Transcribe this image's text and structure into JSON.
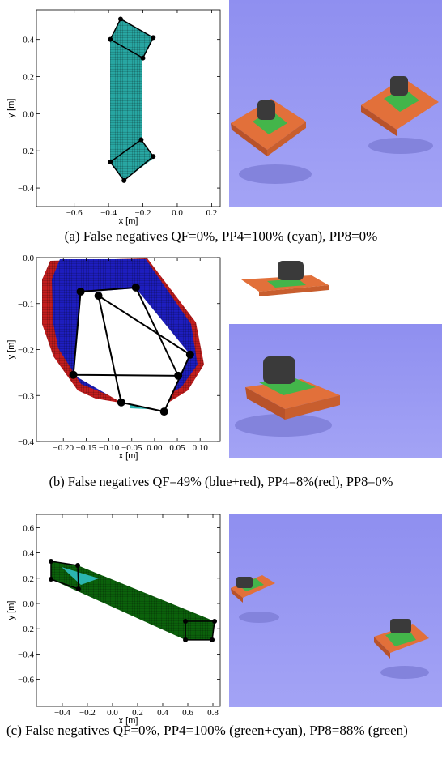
{
  "figures": [
    {
      "caption": "(a) False negatives QF=0%, PP4=100% (cyan), PP8=0%",
      "plot": {
        "xlabel": "x [m]",
        "ylabel": "y [m]",
        "xlim": [
          -0.82,
          0.25
        ],
        "ylim": [
          -0.5,
          0.56
        ],
        "xticks": [
          {
            "value": -0.6,
            "label": "−0.6"
          },
          {
            "value": -0.4,
            "label": "−0.4"
          },
          {
            "value": -0.2,
            "label": "−0.2"
          },
          {
            "value": 0.0,
            "label": "0.0"
          },
          {
            "value": 0.2,
            "label": "0.2"
          }
        ],
        "yticks": [
          {
            "value": -0.4,
            "label": "−0.4"
          },
          {
            "value": -0.2,
            "label": "−0.2"
          },
          {
            "value": 0.0,
            "label": "0.0"
          },
          {
            "value": 0.2,
            "label": "0.2"
          },
          {
            "value": 0.4,
            "label": "0.4"
          }
        ],
        "polygons": [
          {
            "x": [
              -0.33,
              -0.14,
              -0.2,
              -0.39
            ],
            "y": [
              0.51,
              0.41,
              0.3,
              0.4
            ]
          },
          {
            "x": [
              -0.21,
              -0.14,
              -0.31,
              -0.39
            ],
            "y": [
              -0.14,
              -0.23,
              -0.36,
              -0.26
            ]
          }
        ]
      }
    },
    {
      "caption": "(b) False negatives QF=49% (blue+red), PP4=8%(red), PP8=0%",
      "plot": {
        "xlabel": "x [m]",
        "ylabel": "y [m]",
        "xlim": [
          -0.259,
          0.144
        ],
        "ylim": [
          -0.4,
          0.0
        ],
        "xticks": [
          {
            "value": -0.2,
            "label": "−0.20"
          },
          {
            "value": -0.15,
            "label": "−0.15"
          },
          {
            "value": -0.1,
            "label": "−0.10"
          },
          {
            "value": -0.05,
            "label": "−0.05"
          },
          {
            "value": 0.0,
            "label": "0.00"
          },
          {
            "value": 0.05,
            "label": "0.05"
          },
          {
            "value": 0.1,
            "label": "0.10"
          }
        ],
        "yticks": [
          {
            "value": -0.4,
            "label": "−0.4"
          },
          {
            "value": -0.3,
            "label": "−0.3"
          },
          {
            "value": -0.2,
            "label": "−0.2"
          },
          {
            "value": -0.1,
            "label": "−0.1"
          },
          {
            "value": 0.0,
            "label": "0.0"
          }
        ],
        "polygons": [
          {
            "x": [
              -0.162,
              -0.041,
              0.052,
              -0.178
            ],
            "y": [
              -0.074,
              -0.065,
              -0.257,
              -0.255
            ]
          },
          {
            "x": [
              -0.123,
              0.078,
              0.021,
              -0.073
            ],
            "y": [
              -0.083,
              -0.211,
              -0.335,
              -0.315
            ]
          }
        ]
      }
    },
    {
      "caption": "(c) False negatives QF=0%, PP4=100% (green+cyan), PP8=88% (green)",
      "plot": {
        "xlabel": "x [m]",
        "ylabel": "y [m]",
        "xlim": [
          -0.606,
          0.858
        ],
        "ylim": [
          -0.814,
          0.705
        ],
        "xticks": [
          {
            "value": -0.4,
            "label": "−0.4"
          },
          {
            "value": -0.2,
            "label": "−0.2"
          },
          {
            "value": 0.0,
            "label": "0.0"
          },
          {
            "value": 0.2,
            "label": "0.2"
          },
          {
            "value": 0.4,
            "label": "0.4"
          },
          {
            "value": 0.6,
            "label": "0.6"
          },
          {
            "value": 0.8,
            "label": "0.8"
          }
        ],
        "yticks": [
          {
            "value": -0.6,
            "label": "−0.6"
          },
          {
            "value": -0.4,
            "label": "−0.4"
          },
          {
            "value": -0.2,
            "label": "−0.2"
          },
          {
            "value": 0.0,
            "label": "0.0"
          },
          {
            "value": 0.2,
            "label": "0.2"
          },
          {
            "value": 0.4,
            "label": "0.4"
          },
          {
            "value": 0.6,
            "label": "0.6"
          }
        ],
        "polygons": [
          {
            "x": [
              -0.49,
              -0.277,
              -0.271,
              -0.49
            ],
            "y": [
              0.333,
              0.301,
              0.115,
              0.192
            ]
          },
          {
            "x": [
              0.581,
              0.813,
              0.794,
              0.581
            ],
            "y": [
              -0.141,
              -0.141,
              -0.288,
              -0.288
            ]
          }
        ]
      }
    }
  ]
}
